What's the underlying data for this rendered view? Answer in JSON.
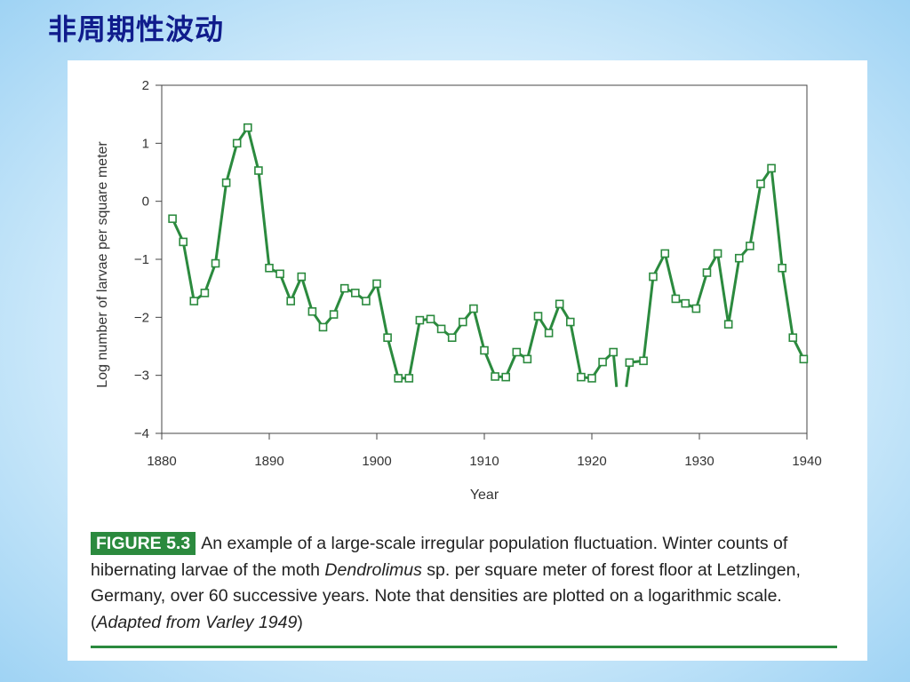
{
  "page": {
    "title": "非周期性波动"
  },
  "caption": {
    "badge": "FIGURE 5.3",
    "text_1": "An example of a large-scale irregular population fluctuation. Winter counts of hibernating larvae of the moth ",
    "italic_1": "Dendrolimus",
    "text_2": " sp. per square meter of forest floor at Letzlingen, Germany, over 60 successive years. Note that densities are plotted on a logarithmic scale. (",
    "italic_2": "Adapted from Varley 1949",
    "text_3": ")"
  },
  "chart_data": {
    "type": "line",
    "xlabel": "Year",
    "ylabel": "Log number of larvae per square meter",
    "xlim": [
      1880,
      1940
    ],
    "ylim": [
      -4,
      2
    ],
    "x_ticks": [
      1880,
      1890,
      1900,
      1910,
      1920,
      1930,
      1940
    ],
    "y_ticks": [
      2,
      1,
      0,
      -1,
      -2,
      -3,
      -4
    ],
    "y_tick_labels": [
      "2",
      "1",
      "0",
      "−1",
      "−2",
      "−3",
      "−4"
    ],
    "grid": false,
    "line_color": "#2b8a3e",
    "marker": "open-square",
    "series": [
      {
        "segments": [
          [
            [
              1881,
              -0.3
            ],
            [
              1882,
              -0.7
            ],
            [
              1883,
              -1.72
            ],
            [
              1884,
              -1.58
            ],
            [
              1885,
              -1.07
            ],
            [
              1886,
              0.32
            ],
            [
              1887,
              1.0
            ],
            [
              1888,
              1.27
            ],
            [
              1889,
              0.53
            ],
            [
              1890,
              -1.15
            ],
            [
              1891,
              -1.25
            ],
            [
              1892,
              -1.72
            ],
            [
              1893,
              -1.3
            ],
            [
              1894,
              -1.9
            ],
            [
              1895,
              -2.17
            ],
            [
              1896,
              -1.95
            ],
            [
              1897,
              -1.5
            ],
            [
              1898,
              -1.58
            ],
            [
              1899,
              -1.72
            ],
            [
              1900,
              -1.42
            ],
            [
              1901,
              -2.35
            ],
            [
              1902,
              -3.05
            ],
            [
              1903,
              -3.05
            ],
            [
              1904,
              -2.05
            ],
            [
              1905,
              -2.03
            ],
            [
              1906,
              -2.2
            ],
            [
              1907,
              -2.35
            ],
            [
              1908,
              -2.08
            ],
            [
              1909,
              -1.85
            ],
            [
              1910,
              -2.57
            ],
            [
              1911,
              -3.02
            ],
            [
              1912,
              -3.03
            ],
            [
              1913,
              -2.6
            ],
            [
              1914,
              -2.72
            ],
            [
              1915,
              -1.98
            ],
            [
              1916,
              -2.27
            ],
            [
              1917,
              -1.77
            ],
            [
              1918,
              -2.08
            ],
            [
              1919,
              -3.03
            ],
            [
              1920,
              -3.05
            ],
            [
              1921,
              -2.77
            ],
            [
              1922,
              -2.6
            ],
            [
              1922.3,
              -3.2
            ]
          ],
          [
            [
              1923.2,
              -3.2
            ],
            [
              1923.5,
              -2.78
            ],
            [
              1924.8,
              -2.75
            ],
            [
              1925.7,
              -1.3
            ],
            [
              1926.8,
              -0.9
            ],
            [
              1927.8,
              -1.68
            ],
            [
              1928.7,
              -1.76
            ],
            [
              1929.7,
              -1.85
            ],
            [
              1930.7,
              -1.23
            ],
            [
              1931.7,
              -0.9
            ],
            [
              1932.7,
              -2.12
            ],
            [
              1933.7,
              -0.98
            ],
            [
              1934.7,
              -0.77
            ],
            [
              1935.7,
              0.3
            ],
            [
              1936.7,
              0.57
            ],
            [
              1937.7,
              -1.15
            ],
            [
              1938.7,
              -2.35
            ],
            [
              1939.7,
              -2.72
            ]
          ]
        ]
      }
    ]
  }
}
